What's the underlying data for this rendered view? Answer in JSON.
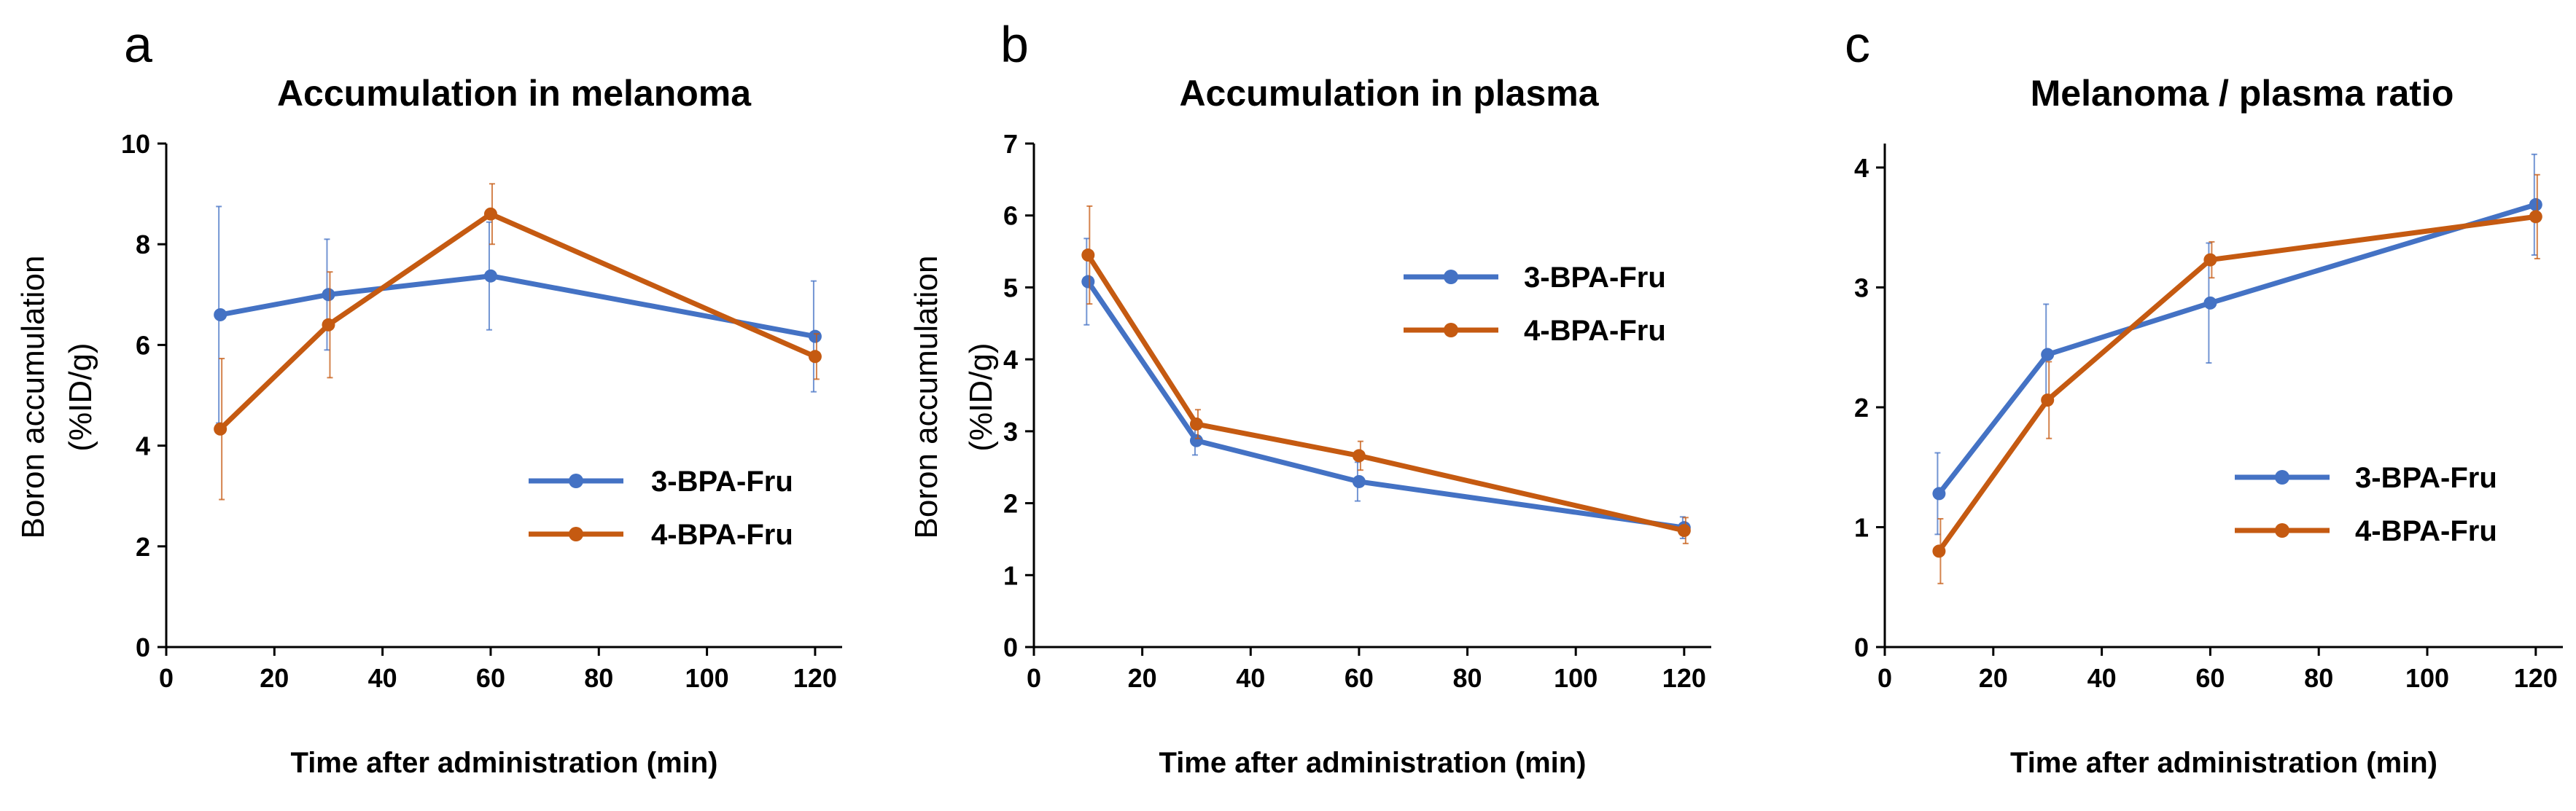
{
  "chart_data": [
    {
      "panel": "a",
      "type": "line",
      "title": "Accumulation in melanoma",
      "xlabel": "Time after administration (min)",
      "ylabel_lines": [
        "Boron accumulation",
        "(%ID/g)"
      ],
      "xlim": [
        0,
        125
      ],
      "ylim": [
        0,
        10
      ],
      "xticks": [
        0,
        20,
        40,
        60,
        80,
        100,
        120
      ],
      "yticks": [
        0,
        2,
        4,
        6,
        8,
        10
      ],
      "x": [
        10,
        30,
        60,
        120
      ],
      "legend_position": "right-middle",
      "series": [
        {
          "name": "3-BPA-Fru",
          "color": "#4472C4",
          "values": [
            6.6,
            7.0,
            7.37,
            6.17
          ],
          "errors": [
            2.15,
            1.1,
            1.07,
            1.1
          ]
        },
        {
          "name": "4-BPA-Fru",
          "color": "#C55A11",
          "values": [
            4.33,
            6.4,
            8.6,
            5.77
          ],
          "errors": [
            1.4,
            1.05,
            0.6,
            0.45
          ]
        }
      ]
    },
    {
      "panel": "b",
      "type": "line",
      "title": "Accumulation in plasma",
      "xlabel": "Time after administration (min)",
      "ylabel_lines": [
        "Boron accumulation",
        "(%ID/g)"
      ],
      "xlim": [
        0,
        125
      ],
      "ylim": [
        0,
        7
      ],
      "xticks": [
        0,
        20,
        40,
        60,
        80,
        100,
        120
      ],
      "yticks": [
        0,
        1,
        2,
        3,
        4,
        5,
        6,
        7
      ],
      "x": [
        10,
        30,
        60,
        120
      ],
      "legend_position": "top-right",
      "series": [
        {
          "name": "3-BPA-Fru",
          "color": "#4472C4",
          "values": [
            5.08,
            2.87,
            2.3,
            1.66
          ],
          "errors": [
            0.6,
            0.2,
            0.27,
            0.15
          ]
        },
        {
          "name": "4-BPA-Fru",
          "color": "#C55A11",
          "values": [
            5.45,
            3.1,
            2.66,
            1.62
          ],
          "errors": [
            0.68,
            0.2,
            0.2,
            0.18
          ]
        }
      ]
    },
    {
      "panel": "c",
      "type": "line",
      "title": "Melanoma / plasma ratio",
      "xlabel": "Time after administration (min)",
      "ylabel_lines": [],
      "xlim": [
        0,
        125
      ],
      "ylim": [
        0,
        4.2
      ],
      "xticks": [
        0,
        20,
        40,
        60,
        80,
        100,
        120
      ],
      "yticks": [
        0,
        1,
        2,
        3,
        4
      ],
      "x": [
        10,
        30,
        60,
        120
      ],
      "legend_position": "bottom-right",
      "series": [
        {
          "name": "3-BPA-Fru",
          "color": "#4472C4",
          "values": [
            1.28,
            2.44,
            2.87,
            3.69
          ],
          "errors": [
            0.34,
            0.42,
            0.5,
            0.42
          ]
        },
        {
          "name": "4-BPA-Fru",
          "color": "#C55A11",
          "values": [
            0.8,
            2.06,
            3.23,
            3.59
          ],
          "errors": [
            0.27,
            0.32,
            0.15,
            0.35
          ]
        }
      ]
    }
  ]
}
